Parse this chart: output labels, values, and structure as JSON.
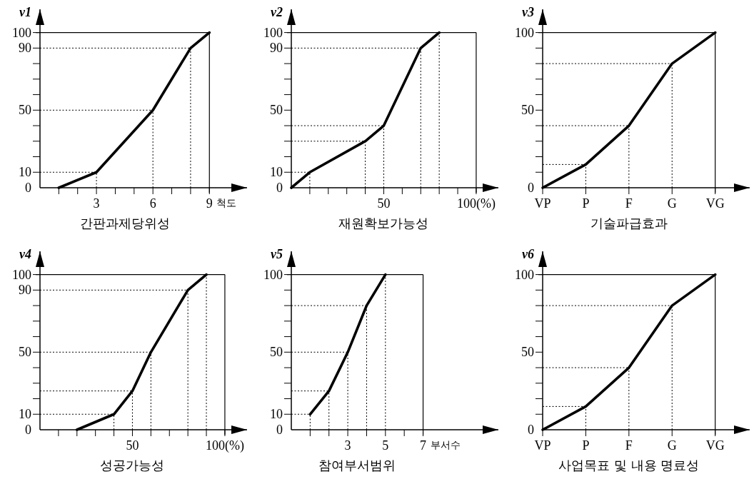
{
  "chart_data": [
    {
      "type": "line",
      "ylabel": "v1",
      "xlabel": "간판과제당위성",
      "annotations": [
        "척도"
      ],
      "color": "#000000",
      "x": [
        1,
        3,
        6,
        8,
        9
      ],
      "values": [
        0,
        10,
        50,
        90,
        100
      ],
      "xlim": [
        0,
        11
      ],
      "ylim": [
        0,
        115
      ],
      "xticks": [
        {
          "value": 1,
          "label": null
        },
        {
          "value": 2,
          "label": null
        },
        3,
        {
          "value": 4,
          "label": null
        },
        {
          "value": 5,
          "label": null
        },
        6,
        {
          "value": 7,
          "label": null
        },
        {
          "value": 8,
          "label": null
        },
        9
      ],
      "yticks": [
        0,
        10,
        {
          "value": 20,
          "label": null
        },
        {
          "value": 30,
          "label": null
        },
        {
          "value": 40,
          "label": null
        },
        50,
        {
          "value": 60,
          "label": null
        },
        {
          "value": 70,
          "label": null
        },
        {
          "value": 80,
          "label": null
        },
        90,
        100
      ],
      "ref_lines": [
        {
          "axis": "y",
          "value": 100,
          "line_style": "solid"
        },
        {
          "axis": "x",
          "value": 9,
          "line_style": "solid"
        },
        {
          "axis": "y",
          "value": 10,
          "line_style": "dotted"
        },
        {
          "axis": "y",
          "value": 50,
          "line_style": "dotted"
        },
        {
          "axis": "y",
          "value": 90,
          "line_style": "dotted"
        },
        {
          "axis": "x",
          "value": 3,
          "line_style": "dotted"
        },
        {
          "axis": "x",
          "value": 6,
          "line_style": "dotted"
        },
        {
          "axis": "x",
          "value": 8,
          "line_style": "dotted"
        }
      ]
    },
    {
      "type": "line",
      "ylabel": "v2",
      "xlabel": "재원확보가능성",
      "color": "#000000",
      "x": [
        0,
        10,
        40,
        50,
        70,
        80
      ],
      "values": [
        0,
        10,
        30,
        40,
        90,
        100
      ],
      "xlim": [
        0,
        112
      ],
      "ylim": [
        0,
        115
      ],
      "xticks": [
        {
          "value": 10,
          "label": null
        },
        {
          "value": 20,
          "label": null
        },
        {
          "value": 30,
          "label": null
        },
        {
          "value": 40,
          "label": null
        },
        50,
        {
          "value": 60,
          "label": null
        },
        {
          "value": 70,
          "label": null
        },
        {
          "value": 80,
          "label": null
        },
        {
          "value": 90,
          "label": null
        },
        {
          "value": 100,
          "label": "100(%)"
        }
      ],
      "yticks": [
        0,
        10,
        {
          "value": 20,
          "label": null
        },
        {
          "value": 30,
          "label": null
        },
        {
          "value": 40,
          "label": null
        },
        50,
        {
          "value": 60,
          "label": null
        },
        {
          "value": 70,
          "label": null
        },
        {
          "value": 80,
          "label": null
        },
        90,
        100
      ],
      "ref_lines": [
        {
          "axis": "y",
          "value": 100,
          "line_style": "solid"
        },
        {
          "axis": "x",
          "value": 100,
          "line_style": "solid"
        },
        {
          "axis": "y",
          "value": 10,
          "line_style": "dotted"
        },
        {
          "axis": "y",
          "value": 30,
          "line_style": "dotted"
        },
        {
          "axis": "y",
          "value": 40,
          "line_style": "dotted"
        },
        {
          "axis": "y",
          "value": 90,
          "line_style": "dotted"
        },
        {
          "axis": "x",
          "value": 10,
          "line_style": "dotted"
        },
        {
          "axis": "x",
          "value": 40,
          "line_style": "dotted"
        },
        {
          "axis": "x",
          "value": 50,
          "line_style": "dotted"
        },
        {
          "axis": "x",
          "value": 70,
          "line_style": "dotted"
        },
        {
          "axis": "x",
          "value": 80,
          "line_style": "dotted"
        }
      ]
    },
    {
      "type": "line",
      "ylabel": "v3",
      "xlabel": "기술파급효과",
      "color": "#000000",
      "categories": [
        "VP",
        "P",
        "F",
        "G",
        "VG"
      ],
      "values": [
        0,
        15,
        40,
        80,
        100
      ],
      "ylim": [
        0,
        115
      ],
      "yticks": [
        0,
        {
          "value": 10,
          "label": null
        },
        {
          "value": 20,
          "label": null
        },
        {
          "value": 30,
          "label": null
        },
        {
          "value": 40,
          "label": null
        },
        50,
        {
          "value": 60,
          "label": null
        },
        {
          "value": 70,
          "label": null
        },
        {
          "value": 80,
          "label": null
        },
        {
          "value": 90,
          "label": null
        },
        100
      ],
      "ref_lines": [
        {
          "axis": "y",
          "value": 100,
          "line_style": "solid"
        },
        {
          "axis": "x",
          "value": "VG",
          "line_style": "solid"
        },
        {
          "axis": "y",
          "value": 15,
          "line_style": "dotted"
        },
        {
          "axis": "y",
          "value": 40,
          "line_style": "dotted"
        },
        {
          "axis": "y",
          "value": 80,
          "line_style": "dotted"
        },
        {
          "axis": "x",
          "value": "P",
          "line_style": "dotted"
        },
        {
          "axis": "x",
          "value": "F",
          "line_style": "dotted"
        },
        {
          "axis": "x",
          "value": "G",
          "line_style": "dotted"
        }
      ]
    },
    {
      "type": "line",
      "ylabel": "v4",
      "xlabel": "성공가능성",
      "color": "#000000",
      "x": [
        20,
        40,
        50,
        60,
        80,
        90
      ],
      "values": [
        0,
        10,
        25,
        50,
        90,
        100
      ],
      "xlim": [
        0,
        112
      ],
      "ylim": [
        0,
        115
      ],
      "xticks": [
        {
          "value": 10,
          "label": null
        },
        {
          "value": 20,
          "label": null
        },
        {
          "value": 30,
          "label": null
        },
        {
          "value": 40,
          "label": null
        },
        50,
        {
          "value": 60,
          "label": null
        },
        {
          "value": 70,
          "label": null
        },
        {
          "value": 80,
          "label": null
        },
        {
          "value": 90,
          "label": null
        },
        {
          "value": 100,
          "label": "100(%)"
        }
      ],
      "yticks": [
        0,
        10,
        {
          "value": 20,
          "label": null
        },
        {
          "value": 30,
          "label": null
        },
        {
          "value": 40,
          "label": null
        },
        50,
        {
          "value": 60,
          "label": null
        },
        {
          "value": 70,
          "label": null
        },
        {
          "value": 80,
          "label": null
        },
        90,
        100
      ],
      "ref_lines": [
        {
          "axis": "y",
          "value": 100,
          "line_style": "solid"
        },
        {
          "axis": "x",
          "value": 100,
          "line_style": "solid"
        },
        {
          "axis": "y",
          "value": 10,
          "line_style": "dotted"
        },
        {
          "axis": "y",
          "value": 25,
          "line_style": "dotted"
        },
        {
          "axis": "y",
          "value": 50,
          "line_style": "dotted"
        },
        {
          "axis": "y",
          "value": 90,
          "line_style": "dotted"
        },
        {
          "axis": "x",
          "value": 40,
          "line_style": "dotted"
        },
        {
          "axis": "x",
          "value": 50,
          "line_style": "dotted"
        },
        {
          "axis": "x",
          "value": 60,
          "line_style": "dotted"
        },
        {
          "axis": "x",
          "value": 80,
          "line_style": "dotted"
        },
        {
          "axis": "x",
          "value": 90,
          "line_style": "dotted"
        }
      ]
    },
    {
      "type": "line",
      "ylabel": "v5",
      "xlabel": "참여부서범위",
      "annotations": [
        "부서수"
      ],
      "color": "#000000",
      "x": [
        1,
        2,
        3,
        4,
        5
      ],
      "values": [
        10,
        25,
        50,
        80,
        100
      ],
      "xlim": [
        0,
        11
      ],
      "ylim": [
        0,
        115
      ],
      "xticks": [
        {
          "value": 1,
          "label": null
        },
        {
          "value": 2,
          "label": null
        },
        3,
        {
          "value": 4,
          "label": null
        },
        5,
        {
          "value": 6,
          "label": null
        },
        7
      ],
      "yticks": [
        0,
        10,
        {
          "value": 20,
          "label": null
        },
        {
          "value": 30,
          "label": null
        },
        {
          "value": 40,
          "label": null
        },
        50,
        {
          "value": 60,
          "label": null
        },
        {
          "value": 70,
          "label": null
        },
        {
          "value": 80,
          "label": null
        },
        {
          "value": 90,
          "label": null
        },
        100
      ],
      "ref_lines": [
        {
          "axis": "y",
          "value": 100,
          "line_style": "solid"
        },
        {
          "axis": "x",
          "value": 7,
          "line_style": "solid"
        },
        {
          "axis": "y",
          "value": 10,
          "line_style": "dotted"
        },
        {
          "axis": "y",
          "value": 25,
          "line_style": "dotted"
        },
        {
          "axis": "y",
          "value": 50,
          "line_style": "dotted"
        },
        {
          "axis": "y",
          "value": 80,
          "line_style": "dotted"
        },
        {
          "axis": "x",
          "value": 1,
          "line_style": "dotted"
        },
        {
          "axis": "x",
          "value": 2,
          "line_style": "dotted"
        },
        {
          "axis": "x",
          "value": 3,
          "line_style": "dotted"
        },
        {
          "axis": "x",
          "value": 4,
          "line_style": "dotted"
        },
        {
          "axis": "x",
          "value": 5,
          "line_style": "dotted"
        }
      ]
    },
    {
      "type": "line",
      "ylabel": "v6",
      "xlabel": "사업목표 및 내용 명료성",
      "color": "#000000",
      "categories": [
        "VP",
        "P",
        "F",
        "G",
        "VG"
      ],
      "values": [
        0,
        15,
        40,
        80,
        100
      ],
      "ylim": [
        0,
        115
      ],
      "yticks": [
        0,
        {
          "value": 10,
          "label": null
        },
        {
          "value": 20,
          "label": null
        },
        {
          "value": 30,
          "label": null
        },
        {
          "value": 40,
          "label": null
        },
        50,
        {
          "value": 60,
          "label": null
        },
        {
          "value": 70,
          "label": null
        },
        {
          "value": 80,
          "label": null
        },
        {
          "value": 90,
          "label": null
        },
        100
      ],
      "ref_lines": [
        {
          "axis": "y",
          "value": 100,
          "line_style": "solid"
        },
        {
          "axis": "x",
          "value": "VG",
          "line_style": "solid"
        },
        {
          "axis": "y",
          "value": 15,
          "line_style": "dotted"
        },
        {
          "axis": "y",
          "value": 40,
          "line_style": "dotted"
        },
        {
          "axis": "y",
          "value": 80,
          "line_style": "dotted"
        },
        {
          "axis": "x",
          "value": "P",
          "line_style": "dotted"
        },
        {
          "axis": "x",
          "value": "F",
          "line_style": "dotted"
        },
        {
          "axis": "x",
          "value": "G",
          "line_style": "dotted"
        }
      ]
    }
  ]
}
